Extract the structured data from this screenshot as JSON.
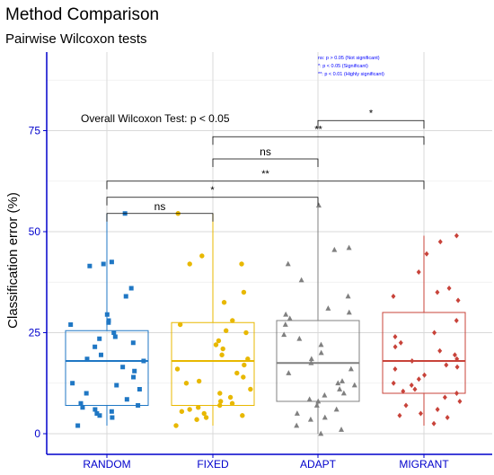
{
  "chart_data": {
    "type": "boxplot",
    "title": "Method Comparison",
    "subtitle": "Pairwise Wilcoxon tests",
    "xlabel": "",
    "ylabel": "Classification error (%)",
    "categories": [
      "RANDOM",
      "FIXED",
      "ADAPT",
      "MIGRANT"
    ],
    "yticks": [
      0,
      25,
      50,
      75
    ],
    "ylim": [
      -5,
      95
    ],
    "grid": true,
    "overall_annotation": "Overall Wilcoxon Test: p < 0.05",
    "legend_notes": [
      "ns: p > 0.05 (Not significant)",
      "*: p < 0.05 (Significant)",
      "**: p < 0.01 (Highly significant)"
    ],
    "colors": {
      "RANDOM": "#1f77c4",
      "FIXED": "#e8b800",
      "ADAPT": "#808080",
      "MIGRANT": "#c8433a",
      "axis": "#0000cc",
      "legend_text": "#0000ff"
    },
    "series": [
      {
        "name": "RANDOM",
        "marker": "square",
        "box": {
          "q1": 7,
          "median": 18,
          "q3": 25.5,
          "whisker_low": 2,
          "whisker_high": 54.5
        }
      },
      {
        "name": "FIXED",
        "marker": "circle",
        "box": {
          "q1": 7,
          "median": 18,
          "q3": 27.5,
          "whisker_low": 2,
          "whisker_high": 54.5
        }
      },
      {
        "name": "ADAPT",
        "marker": "triangle",
        "box": {
          "q1": 8,
          "median": 17.5,
          "q3": 28,
          "whisker_low": 0,
          "whisker_high": 56.5
        }
      },
      {
        "name": "MIGRANT",
        "marker": "diamond",
        "box": {
          "q1": 10,
          "median": 18,
          "q3": 30,
          "whisker_low": 2,
          "whisker_high": 49
        }
      }
    ],
    "points": {
      "RANDOM": [
        54.5,
        42.5,
        42,
        41.5,
        36,
        34,
        29.5,
        28,
        27.5,
        27,
        25,
        24,
        23.5,
        22.5,
        21.5,
        19.5,
        18.5,
        18,
        16.5,
        15.5,
        14,
        12.5,
        12,
        11,
        10,
        8.5,
        7.5,
        7,
        6.5,
        6,
        5.5,
        5,
        4.5,
        4,
        2
      ],
      "FIXED": [
        54.5,
        44,
        42,
        42,
        35,
        32.5,
        28,
        27,
        25.5,
        25,
        23,
        22,
        21,
        19.5,
        18.5,
        17,
        16,
        15,
        14,
        13,
        12.5,
        11,
        10,
        9,
        8,
        7.5,
        7,
        6.5,
        6,
        5.5,
        5,
        4.5,
        4,
        3.5,
        2
      ],
      "ADAPT": [
        56.5,
        46,
        45.5,
        42,
        38,
        34,
        31,
        30,
        29.5,
        28.5,
        27,
        24.5,
        23.5,
        22,
        20,
        18.5,
        17.5,
        16,
        15,
        13,
        12.5,
        12,
        11,
        10,
        9.5,
        8.5,
        8,
        7,
        6,
        5,
        4,
        3.5,
        2,
        1,
        0
      ],
      "MIGRANT": [
        49,
        47.5,
        44.5,
        40,
        36,
        35,
        34,
        33,
        28,
        25,
        24,
        22.5,
        21.5,
        20.5,
        19.5,
        18.5,
        18,
        17,
        16.5,
        16,
        14.5,
        13.5,
        12.5,
        12,
        11,
        10.5,
        10,
        9,
        8,
        7,
        6,
        5,
        4.5,
        4,
        2.5
      ]
    },
    "comparisons": [
      {
        "from": "RANDOM",
        "to": "FIXED",
        "y": 54.5,
        "label": "ns"
      },
      {
        "from": "RANDOM",
        "to": "ADAPT",
        "y": 58.5,
        "label": "*"
      },
      {
        "from": "RANDOM",
        "to": "MIGRANT",
        "y": 62.5,
        "label": "**"
      },
      {
        "from": "FIXED",
        "to": "ADAPT",
        "y": 68,
        "label": "ns"
      },
      {
        "from": "FIXED",
        "to": "MIGRANT",
        "y": 73.5,
        "label": "**"
      },
      {
        "from": "ADAPT",
        "to": "MIGRANT",
        "y": 77.5,
        "label": "*"
      }
    ]
  }
}
